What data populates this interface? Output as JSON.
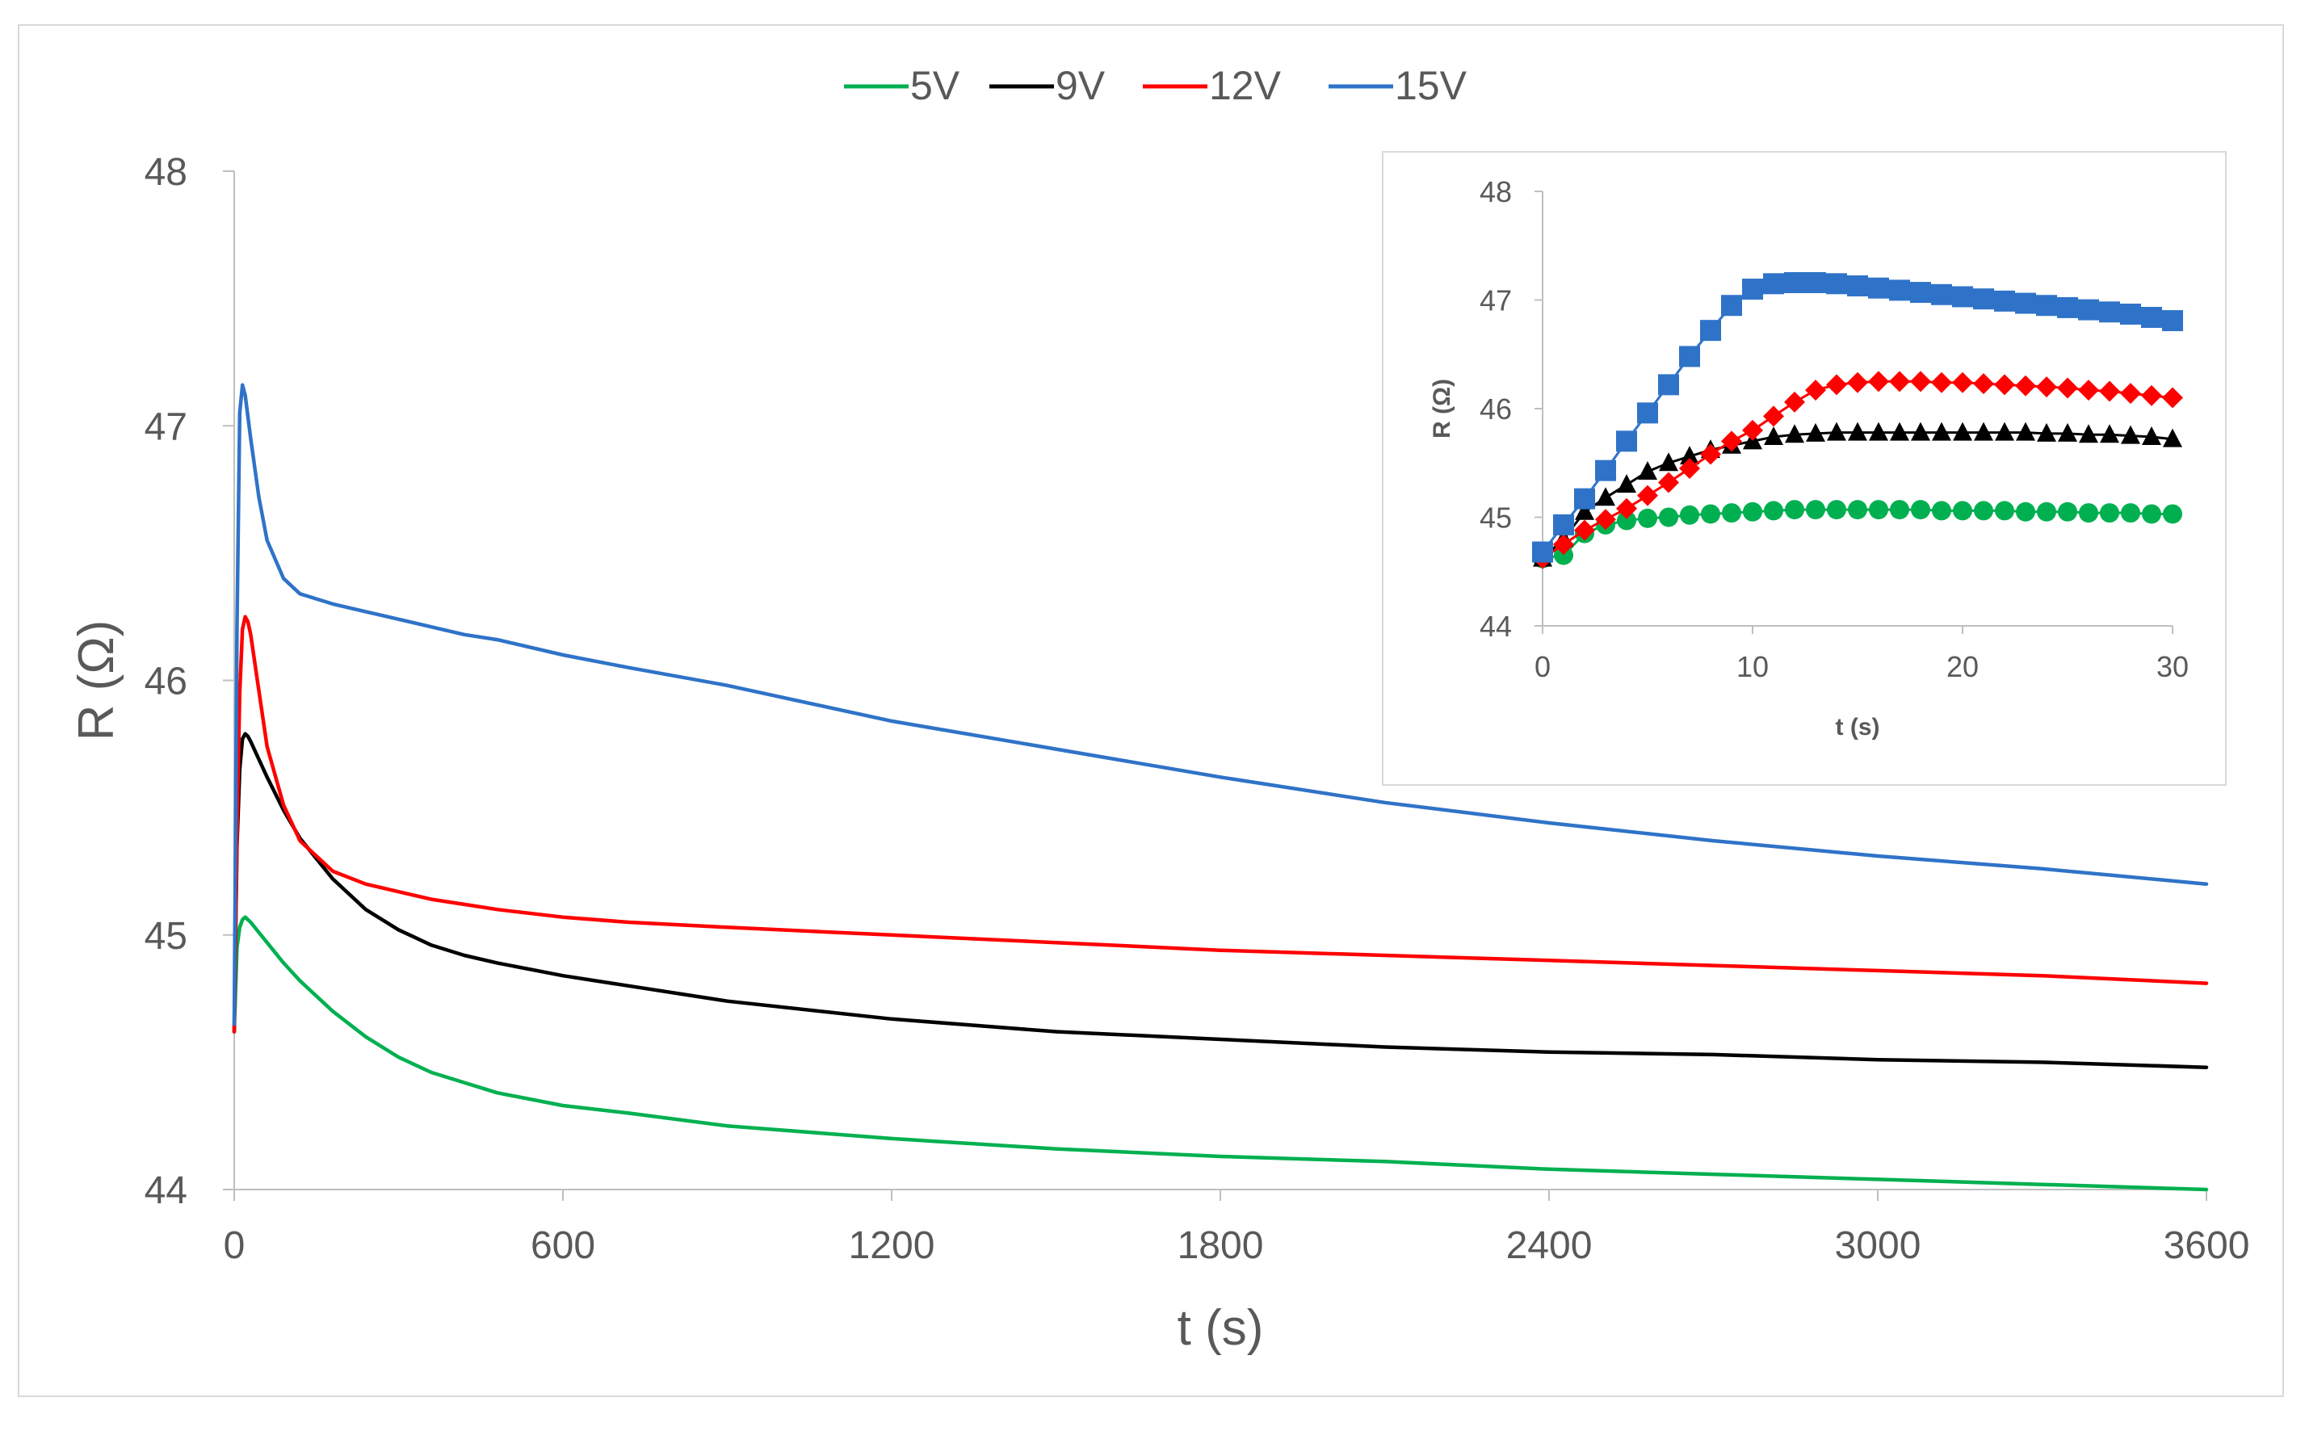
{
  "chart_data": [
    {
      "type": "line",
      "xlabel": "t (s)",
      "ylabel": "R (Ω)",
      "xlim": [
        0,
        3600
      ],
      "ylim": [
        44,
        48
      ],
      "xticks": [
        0,
        600,
        1200,
        1800,
        2400,
        3000,
        3600
      ],
      "yticks": [
        44,
        45,
        46,
        47,
        48
      ],
      "grid": false,
      "legend_position": "top-center",
      "series": [
        {
          "name": "5V",
          "color": "#00b050",
          "x": [
            0,
            5,
            10,
            15,
            20,
            30,
            45,
            60,
            90,
            120,
            180,
            240,
            300,
            360,
            420,
            480,
            600,
            720,
            900,
            1200,
            1500,
            1800,
            2100,
            2400,
            2700,
            3000,
            3300,
            3600
          ],
          "y": [
            44.62,
            44.95,
            45.03,
            45.06,
            45.07,
            45.05,
            45.01,
            44.97,
            44.89,
            44.82,
            44.7,
            44.6,
            44.52,
            44.46,
            44.42,
            44.38,
            44.33,
            44.3,
            44.25,
            44.2,
            44.16,
            44.13,
            44.11,
            44.08,
            44.06,
            44.04,
            44.02,
            44.0
          ]
        },
        {
          "name": "9V",
          "color": "#000000",
          "x": [
            0,
            5,
            10,
            15,
            20,
            25,
            30,
            45,
            60,
            90,
            120,
            180,
            240,
            300,
            360,
            420,
            480,
            600,
            720,
            900,
            1200,
            1500,
            1800,
            2100,
            2400,
            2700,
            3000,
            3300,
            3600
          ],
          "y": [
            44.62,
            45.35,
            45.65,
            45.77,
            45.79,
            45.78,
            45.76,
            45.69,
            45.62,
            45.49,
            45.38,
            45.22,
            45.1,
            45.02,
            44.96,
            44.92,
            44.89,
            44.84,
            44.8,
            44.74,
            44.67,
            44.62,
            44.59,
            44.56,
            44.54,
            44.53,
            44.51,
            44.5,
            44.48
          ]
        },
        {
          "name": "12V",
          "color": "#ff0000",
          "x": [
            0,
            5,
            10,
            15,
            20,
            25,
            30,
            45,
            60,
            90,
            120,
            180,
            240,
            300,
            360,
            420,
            480,
            600,
            720,
            900,
            1200,
            1500,
            1800,
            2100,
            2400,
            2700,
            3000,
            3300,
            3600
          ],
          "y": [
            44.62,
            45.4,
            45.95,
            46.2,
            46.25,
            46.23,
            46.18,
            45.96,
            45.74,
            45.51,
            45.37,
            45.25,
            45.2,
            45.17,
            45.14,
            45.12,
            45.1,
            45.07,
            45.05,
            45.03,
            45.0,
            44.97,
            44.94,
            44.92,
            44.9,
            44.88,
            44.86,
            44.84,
            44.81
          ]
        },
        {
          "name": "15V",
          "color": "#2f73c8",
          "x": [
            0,
            5,
            10,
            15,
            20,
            30,
            45,
            60,
            90,
            120,
            150,
            180,
            240,
            300,
            360,
            420,
            480,
            600,
            720,
            900,
            1200,
            1500,
            1800,
            2100,
            2400,
            2700,
            3000,
            3300,
            3600
          ],
          "y": [
            44.65,
            46.2,
            47.05,
            47.16,
            47.12,
            46.95,
            46.72,
            46.55,
            46.4,
            46.34,
            46.32,
            46.3,
            46.27,
            46.24,
            46.21,
            46.18,
            46.16,
            46.1,
            46.05,
            45.98,
            45.84,
            45.73,
            45.62,
            45.52,
            45.44,
            45.37,
            45.31,
            45.26,
            45.2
          ]
        }
      ]
    },
    {
      "type": "scatter",
      "xlabel": "t (s)",
      "ylabel": "R (Ω)",
      "xlim": [
        0,
        30
      ],
      "ylim": [
        44,
        48
      ],
      "xticks": [
        0,
        10,
        20,
        30
      ],
      "yticks": [
        44,
        45,
        46,
        47,
        48
      ],
      "grid": false,
      "legend_position": "none",
      "series": [
        {
          "name": "5V",
          "color": "#00b050",
          "marker": "circle",
          "x": [
            0,
            1,
            2,
            3,
            4,
            5,
            6,
            7,
            8,
            9,
            10,
            11,
            12,
            13,
            14,
            15,
            16,
            17,
            18,
            19,
            20,
            21,
            22,
            23,
            24,
            25,
            26,
            27,
            28,
            29,
            30
          ],
          "y": [
            44.62,
            44.65,
            44.85,
            44.93,
            44.97,
            44.99,
            45.0,
            45.02,
            45.03,
            45.04,
            45.05,
            45.06,
            45.07,
            45.07,
            45.07,
            45.07,
            45.07,
            45.07,
            45.07,
            45.06,
            45.06,
            45.06,
            45.06,
            45.05,
            45.05,
            45.05,
            45.04,
            45.04,
            45.04,
            45.03,
            45.03
          ]
        },
        {
          "name": "9V",
          "color": "#000000",
          "marker": "triangle",
          "x": [
            0,
            1,
            2,
            3,
            4,
            5,
            6,
            7,
            8,
            9,
            10,
            11,
            12,
            13,
            14,
            15,
            16,
            17,
            18,
            19,
            20,
            21,
            22,
            23,
            24,
            25,
            26,
            27,
            28,
            29,
            30
          ],
          "y": [
            44.62,
            44.8,
            45.05,
            45.18,
            45.3,
            45.42,
            45.5,
            45.56,
            45.62,
            45.66,
            45.7,
            45.74,
            45.76,
            45.77,
            45.78,
            45.78,
            45.78,
            45.78,
            45.78,
            45.78,
            45.78,
            45.78,
            45.78,
            45.78,
            45.77,
            45.77,
            45.76,
            45.76,
            45.75,
            45.74,
            45.72
          ]
        },
        {
          "name": "12V",
          "color": "#ff0000",
          "marker": "diamond",
          "x": [
            0,
            1,
            2,
            3,
            4,
            5,
            6,
            7,
            8,
            9,
            10,
            11,
            12,
            13,
            14,
            15,
            16,
            17,
            18,
            19,
            20,
            21,
            22,
            23,
            24,
            25,
            26,
            27,
            28,
            29,
            30
          ],
          "y": [
            44.62,
            44.75,
            44.88,
            44.98,
            45.08,
            45.2,
            45.32,
            45.45,
            45.58,
            45.7,
            45.8,
            45.93,
            46.06,
            46.17,
            46.22,
            46.24,
            46.25,
            46.25,
            46.25,
            46.24,
            46.24,
            46.23,
            46.22,
            46.21,
            46.2,
            46.19,
            46.17,
            46.16,
            46.14,
            46.12,
            46.1
          ]
        },
        {
          "name": "15V",
          "color": "#2f73c8",
          "marker": "square",
          "x": [
            0,
            1,
            2,
            3,
            4,
            5,
            6,
            7,
            8,
            9,
            10,
            11,
            12,
            13,
            14,
            15,
            16,
            17,
            18,
            19,
            20,
            21,
            22,
            23,
            24,
            25,
            26,
            27,
            28,
            29,
            30
          ],
          "y": [
            44.68,
            44.93,
            45.17,
            45.43,
            45.7,
            45.96,
            46.22,
            46.48,
            46.72,
            46.95,
            47.1,
            47.15,
            47.16,
            47.16,
            47.15,
            47.13,
            47.11,
            47.09,
            47.07,
            47.05,
            47.03,
            47.01,
            46.99,
            46.97,
            46.95,
            46.93,
            46.91,
            46.89,
            46.87,
            46.84,
            46.81
          ]
        }
      ]
    }
  ]
}
